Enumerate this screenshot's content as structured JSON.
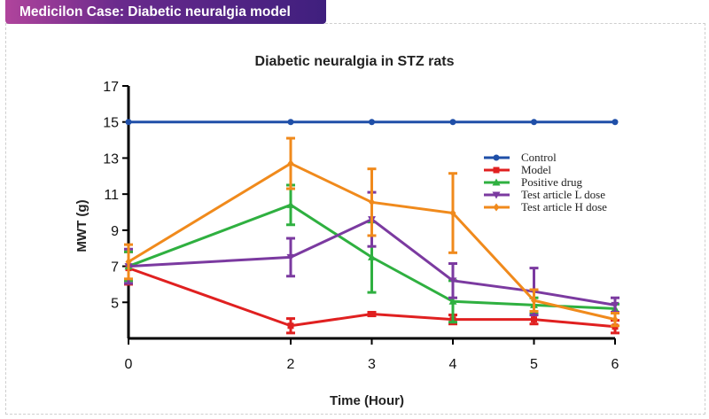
{
  "banner": {
    "title": "Medicilon Case: Diabetic neuralgia model"
  },
  "chart_data": {
    "type": "line",
    "title": "Diabetic neuralgia in STZ rats",
    "xlabel": "Time (Hour)",
    "ylabel": "MWT (g)",
    "x": [
      0,
      2,
      3,
      4,
      5,
      6
    ],
    "xticks": [
      "0",
      "2",
      "3",
      "4",
      "5",
      "6"
    ],
    "yticks": [
      "5",
      "7",
      "9",
      "11",
      "13",
      "15",
      "17"
    ],
    "ylim": [
      3,
      17
    ],
    "xlim": [
      0,
      6
    ],
    "grid": false,
    "legend": "top-right",
    "error_bars": true,
    "series": [
      {
        "name": "Control",
        "color": "#1f4fa8",
        "marker": "circle",
        "values": [
          15,
          15,
          15,
          15,
          15,
          15
        ],
        "err": [
          0,
          0,
          0,
          0,
          0,
          0
        ]
      },
      {
        "name": "Model",
        "color": "#e02020",
        "marker": "square",
        "values": [
          6.9,
          3.7,
          4.35,
          4.05,
          4.05,
          3.65
        ],
        "err": [
          0.9,
          0.4,
          0.1,
          0.25,
          0.25,
          0.35
        ]
      },
      {
        "name": "Positive drug",
        "color": "#2fb040",
        "marker": "triangle-up",
        "values": [
          7.0,
          10.4,
          7.5,
          5.05,
          4.85,
          4.65
        ],
        "err": [
          0.8,
          1.1,
          1.95,
          1.15,
          0.4,
          0.25
        ]
      },
      {
        "name": "Test article L dose",
        "color": "#7b3aa0",
        "marker": "triangle-down",
        "values": [
          7.0,
          7.5,
          9.6,
          6.2,
          5.6,
          4.85
        ],
        "err": [
          0.95,
          1.05,
          1.5,
          0.95,
          1.3,
          0.4
        ]
      },
      {
        "name": "Test article H dose",
        "color": "#f08a1c",
        "marker": "diamond",
        "values": [
          7.25,
          12.7,
          10.55,
          9.95,
          5.1,
          4.05
        ],
        "err": [
          0.95,
          1.4,
          1.85,
          2.2,
          0.6,
          0.35
        ]
      }
    ]
  }
}
